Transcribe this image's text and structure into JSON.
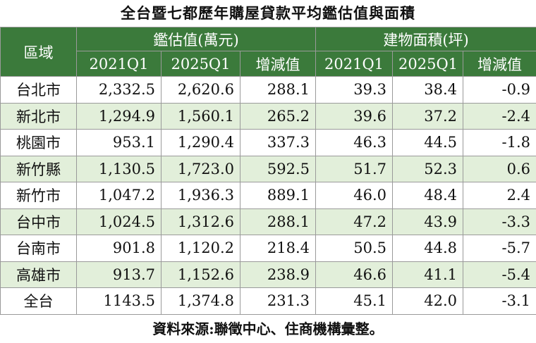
{
  "title": "全台暨七都歷年購屋貸款平均鑑估值與面積",
  "table": {
    "region_header": "區域",
    "groups": [
      "鑑估值(萬元)",
      "建物面積(坪)"
    ],
    "subheaders": [
      "2021Q1",
      "2025Q1",
      "增減值",
      "2021Q1",
      "2025Q1",
      "增減值"
    ],
    "rows": [
      [
        "台北市",
        "2,332.5",
        "2,620.6",
        "288.1",
        "39.3",
        "38.4",
        "-0.9"
      ],
      [
        "新北市",
        "1,294.9",
        "1,560.1",
        "265.2",
        "39.6",
        "37.2",
        "-2.4"
      ],
      [
        "桃園市",
        "953.1",
        "1,290.4",
        "337.3",
        "46.3",
        "44.5",
        "-1.8"
      ],
      [
        "新竹縣",
        "1,130.5",
        "1,723.0",
        "592.5",
        "51.7",
        "52.3",
        "0.6"
      ],
      [
        "新竹市",
        "1,047.2",
        "1,936.3",
        "889.1",
        "46.0",
        "48.4",
        "2.4"
      ],
      [
        "台中市",
        "1,024.5",
        "1,312.6",
        "288.1",
        "47.2",
        "43.9",
        "-3.3"
      ],
      [
        "台南市",
        "901.8",
        "1,120.2",
        "218.4",
        "50.5",
        "44.8",
        "-5.7"
      ],
      [
        "高雄市",
        "913.7",
        "1,152.6",
        "238.9",
        "46.6",
        "41.1",
        "-5.4"
      ],
      [
        "全台",
        "1143.5",
        "1,374.8",
        "231.3",
        "45.1",
        "42.0",
        "-3.1"
      ]
    ]
  },
  "source": "資料來源:聯徵中心、住商機構彙整。"
}
